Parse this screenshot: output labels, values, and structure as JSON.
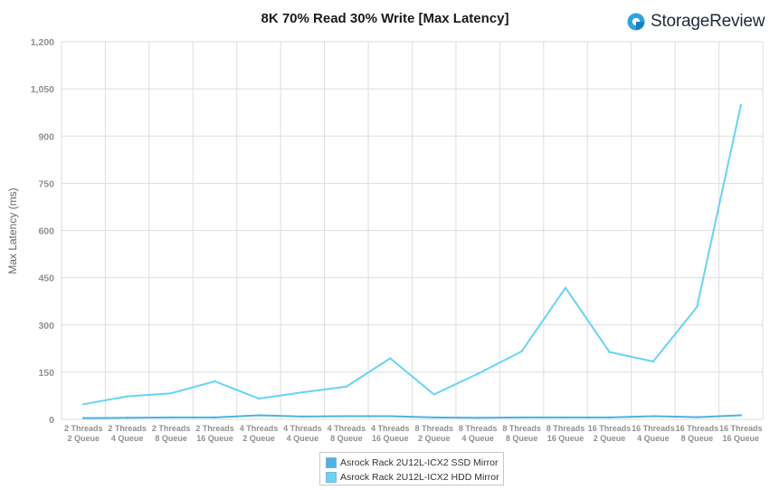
{
  "header": {
    "brand": "StorageReview"
  },
  "colors": {
    "ssd": "#4bb3e3",
    "hdd": "#66d4f7",
    "grid": "#dedede",
    "axis_text": "#909090"
  },
  "legend": {
    "items": [
      {
        "label": "Asrock Rack 2U12L-ICX2 SSD Mirror",
        "color": "#4bb3e3"
      },
      {
        "label": "Asrock Rack 2U12L-ICX2 HDD Mirror",
        "color": "#66d4f7"
      }
    ]
  },
  "chart_data": {
    "type": "line",
    "title": "8K 70% Read 30% Write [Max Latency]",
    "xlabel": "",
    "ylabel": "Max Latency  (ms)",
    "ylim": [
      0,
      1200
    ],
    "yticks": [
      "0",
      "150",
      "300",
      "450",
      "600",
      "750",
      "900",
      "1,050",
      "1,200"
    ],
    "grid": true,
    "legend_position": "bottom",
    "categories": [
      [
        "2 Threads",
        "2 Queue"
      ],
      [
        "2 Threads",
        "4 Queue"
      ],
      [
        "2 Threads",
        "8 Queue"
      ],
      [
        "2 Threads",
        "16 Queue"
      ],
      [
        "4 Threads",
        "2 Queue"
      ],
      [
        "4 Threads",
        "4 Queue"
      ],
      [
        "4 Threads",
        "8 Queue"
      ],
      [
        "4 Threads",
        "16 Queue"
      ],
      [
        "8 Threads",
        "2 Queue"
      ],
      [
        "8 Threads",
        "4 Queue"
      ],
      [
        "8 Threads",
        "8 Queue"
      ],
      [
        "8 Threads",
        "16 Queue"
      ],
      [
        "16 Threads",
        "2 Queue"
      ],
      [
        "16 Threads",
        "4 Queue"
      ],
      [
        "16 Threads",
        "8 Queue"
      ],
      [
        "16 Threads",
        "16 Queue"
      ]
    ],
    "series": [
      {
        "name": "Asrock Rack 2U12L-ICX2 SSD Mirror",
        "color": "#4bb3e3",
        "values": [
          4,
          5,
          6,
          6,
          13,
          9,
          10,
          10,
          6,
          5,
          6,
          6,
          6,
          10,
          7,
          13
        ]
      },
      {
        "name": "Asrock Rack 2U12L-ICX2 HDD Mirror",
        "color": "#66d4f7",
        "values": [
          48,
          73,
          83,
          121,
          66,
          86,
          104,
          194,
          79,
          145,
          216,
          418,
          214,
          184,
          357,
          998
        ]
      }
    ]
  }
}
